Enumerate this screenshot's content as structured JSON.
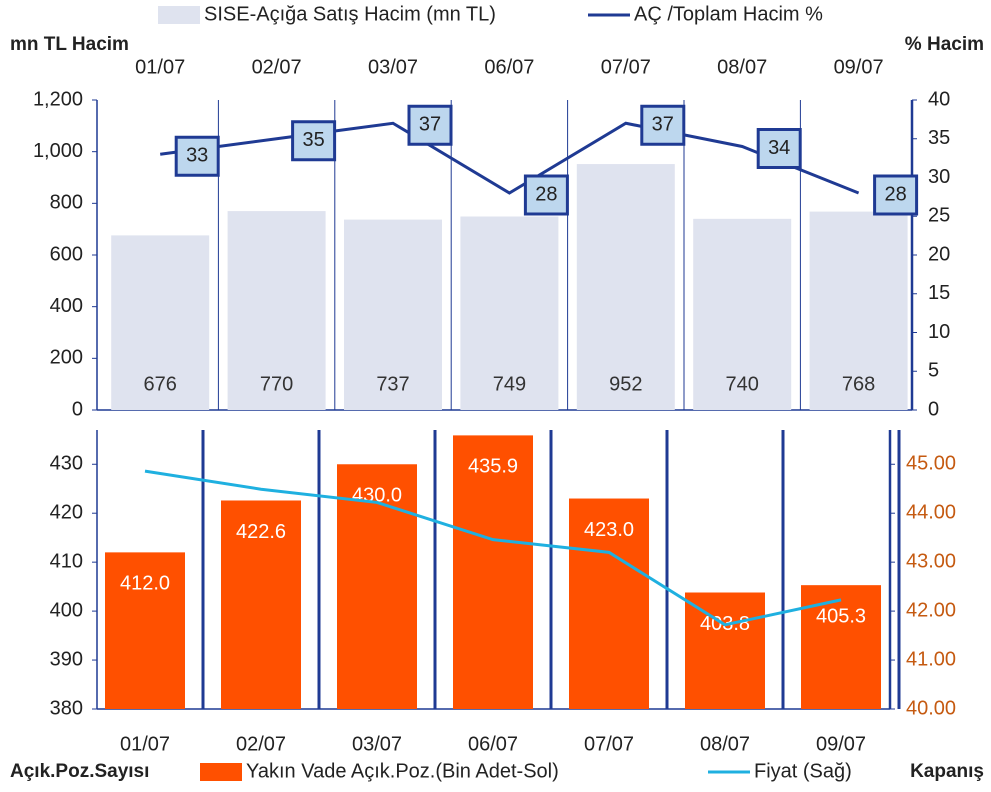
{
  "chart_data": [
    {
      "type": "bar",
      "axis_label_left": "mn TL Hacim",
      "axis_label_right": "% Hacim",
      "categories": [
        "01/07",
        "02/07",
        "03/07",
        "06/07",
        "07/07",
        "08/07",
        "09/07"
      ],
      "series": [
        {
          "name": "SISE-Açığa Satış Hacim (mn TL)",
          "type": "bar",
          "color": "#dfe3ef",
          "values": [
            676,
            770,
            737,
            749,
            952,
            740,
            768
          ]
        },
        {
          "name": "AÇ /Toplam Hacim %",
          "type": "line",
          "axis": "y2",
          "color": "#1f3a93",
          "values": [
            33,
            35,
            37,
            28,
            37,
            34,
            28
          ]
        }
      ],
      "ylim": [
        0,
        1200
      ],
      "yticks": [
        0,
        200,
        400,
        600,
        800,
        {
          "value": 1000,
          "label": "1,000"
        },
        {
          "value": 1200,
          "label": "1,200"
        }
      ],
      "y2lim": [
        0,
        40
      ],
      "y2ticks": [
        0,
        5,
        10,
        15,
        20,
        25,
        30,
        35,
        40
      ]
    },
    {
      "type": "bar",
      "axis_label_left": "Açık.Poz.Sayısı",
      "axis_label_right": "Kapanış",
      "categories": [
        "01/07",
        "02/07",
        "03/07",
        "06/07",
        "07/07",
        "08/07",
        "09/07"
      ],
      "series": [
        {
          "name": "Yakın Vade Açık.Poz.(Bin Adet-Sol)",
          "type": "bar",
          "color": "#ff5000",
          "values": [
            412,
            422.6,
            430,
            435.9,
            423,
            403.8,
            405.3
          ],
          "value_labels": [
            "412.0",
            "422.6",
            "430.0",
            "435.9",
            "423.0",
            "403.8",
            "405.3"
          ]
        },
        {
          "name": "Fiyat (Sağ)",
          "type": "line",
          "axis": "y2",
          "color": "#1fb0e0",
          "values": [
            44.86,
            44.49,
            44.22,
            43.46,
            43.2,
            41.72,
            42.23
          ]
        }
      ],
      "ylim": [
        380,
        437
      ],
      "yticks": [
        380,
        390,
        400,
        410,
        420,
        430
      ],
      "y2lim": [
        40,
        45.7
      ],
      "y2ticks": [
        {
          "value": 40,
          "label": "40.00"
        },
        {
          "value": 41,
          "label": "41.00"
        },
        {
          "value": 42,
          "label": "42.00"
        },
        {
          "value": 43,
          "label": "43.00"
        },
        {
          "value": 44,
          "label": "44.00"
        },
        {
          "value": 45,
          "label": "45.00"
        }
      ]
    }
  ]
}
